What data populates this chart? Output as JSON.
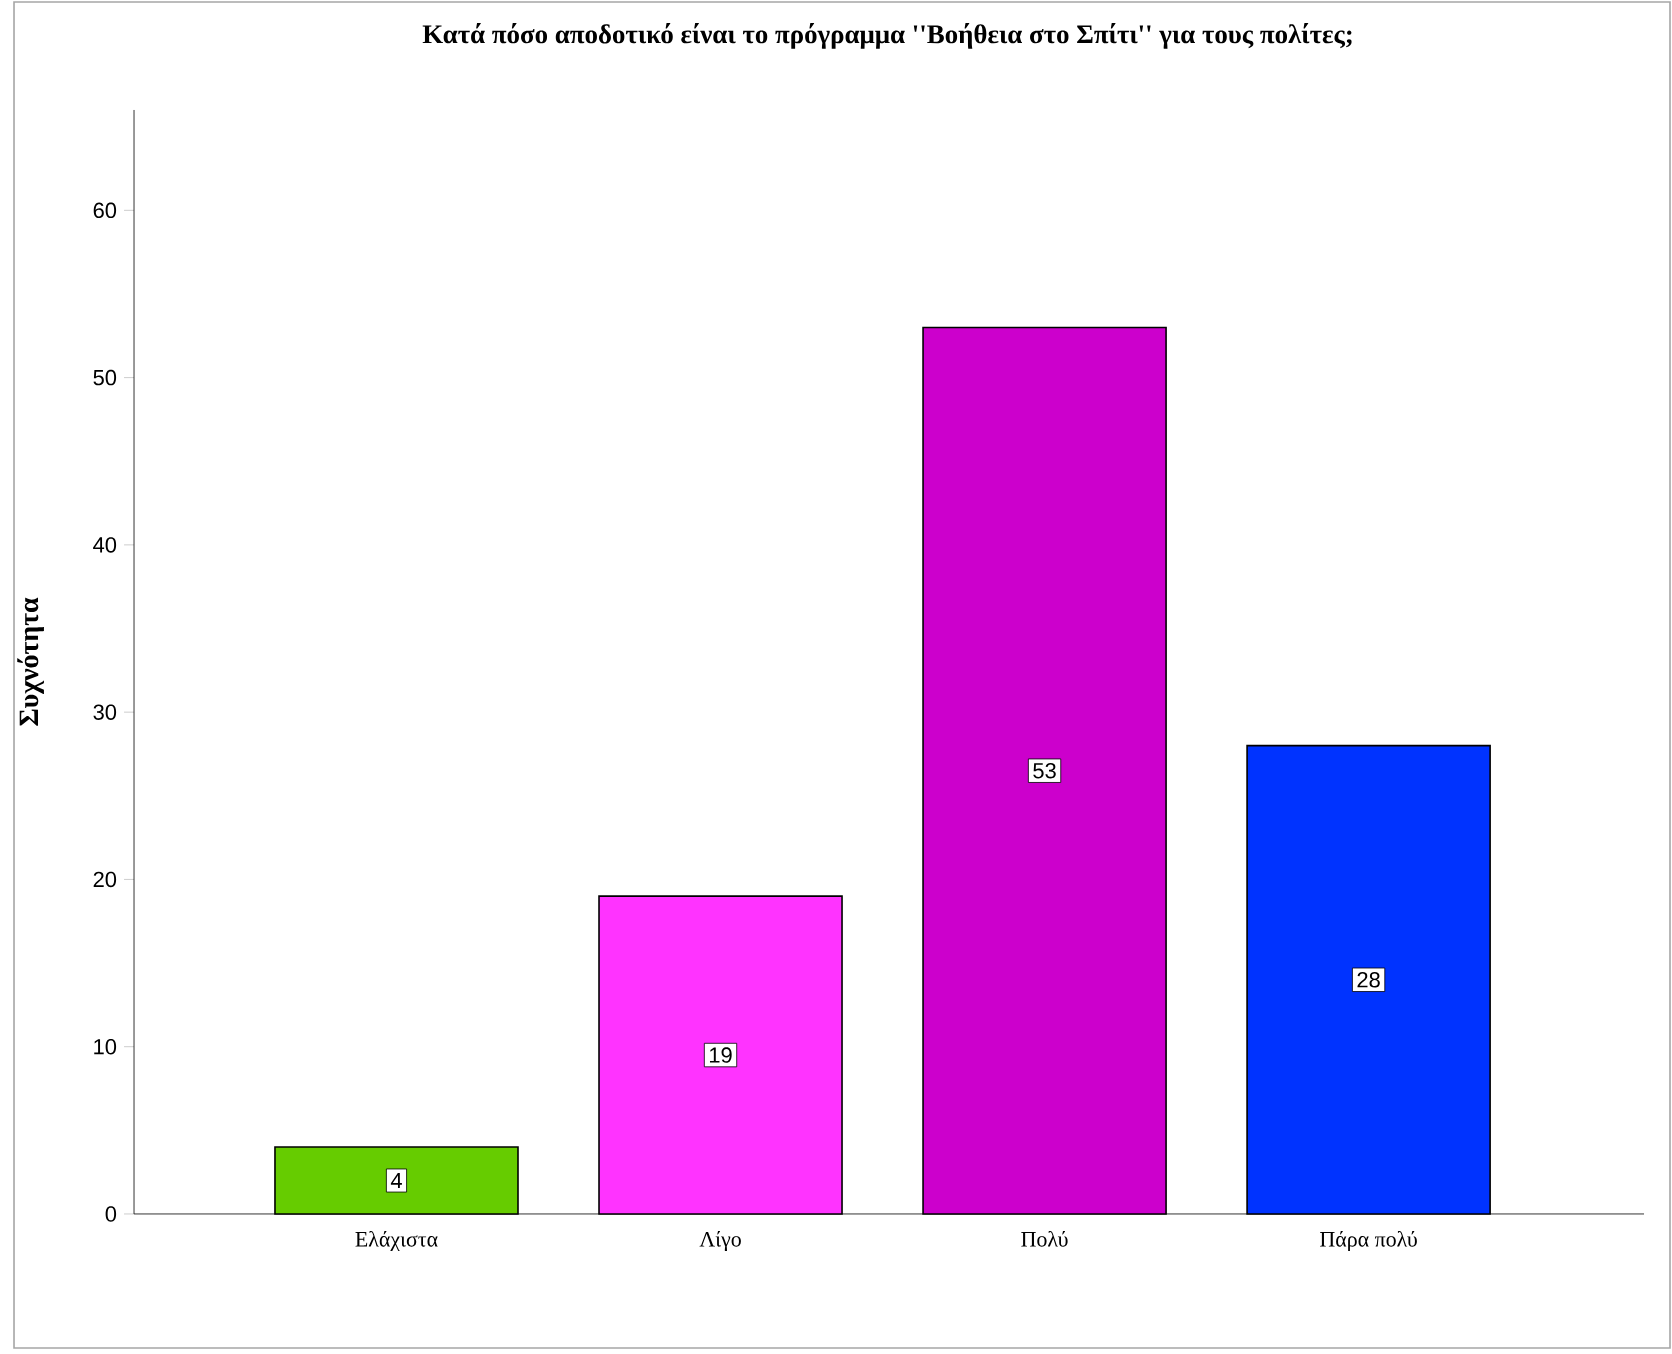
{
  "chart_data": {
    "type": "bar",
    "title": "Κατά πόσο αποδοτικό είναι το πρόγραμμα ''Βοήθεια στο Σπίτι'' για τους πολίτες;",
    "ylabel": "Συχνότητα",
    "categories": [
      "Ελάχιστα",
      "Λίγο",
      "Πολύ",
      "Πάρα πολύ"
    ],
    "values": [
      4,
      19,
      53,
      28
    ],
    "colors": [
      "#66cc00",
      "#ff33ff",
      "#cc00cc",
      "#0033ff"
    ],
    "ylim": [
      0,
      66
    ],
    "yticks": [
      0,
      10,
      20,
      30,
      40,
      50,
      60
    ],
    "data_labels": true
  }
}
